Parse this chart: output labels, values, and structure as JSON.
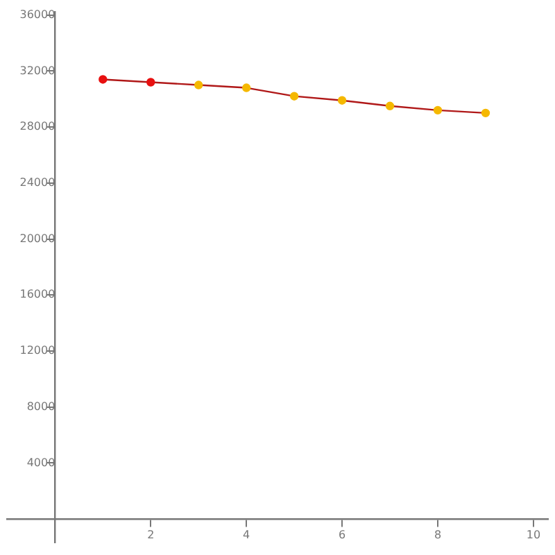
{
  "chart_data": {
    "type": "line",
    "x": [
      1,
      2,
      3,
      4,
      5,
      6,
      7,
      8,
      9
    ],
    "series": [
      {
        "color": "#b01818",
        "colors": [
          "#e81010",
          "#e81010",
          "#f5b800",
          "#f5b800",
          "#f5b800",
          "#f5b800",
          "#f5b800",
          "#f5b800",
          "#f5b800"
        ],
        "values": [
          31400,
          31200,
          31000,
          30800,
          30200,
          29900,
          29500,
          29200,
          29000
        ]
      }
    ],
    "xlim": [
      -1,
      10.3
    ],
    "ylim": [
      -1700,
      36200
    ],
    "xticks": [
      2,
      4,
      6,
      8,
      10
    ],
    "yticks": [
      4000,
      8000,
      12000,
      16000,
      20000,
      24000,
      28000,
      32000,
      36000
    ],
    "grid": false,
    "legend": false,
    "marker": "circle",
    "line_style": "solid"
  }
}
